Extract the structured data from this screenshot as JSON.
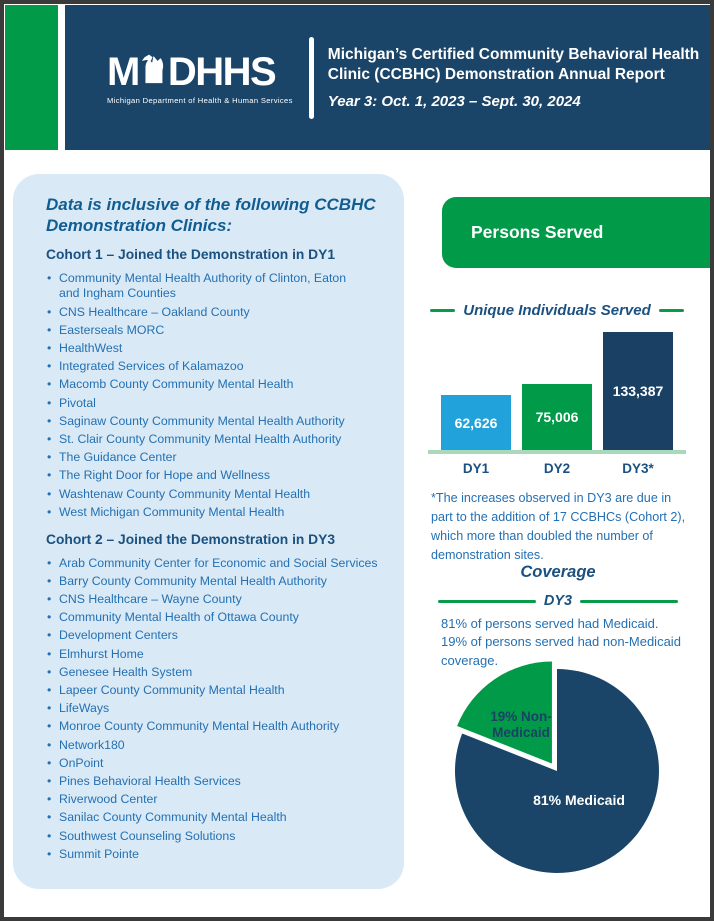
{
  "header": {
    "logo": {
      "prefix": "M",
      "suffix": "DHHS",
      "tagline": "Michigan Department of Health & Human Services"
    },
    "title_line1": "Michigan’s Certified Community Behavioral Health",
    "title_line2": "Clinic (CCBHC) Demonstration Annual Report",
    "subtitle": "Year 3: Oct. 1, 2023 – Sept. 30, 2024"
  },
  "clinics_panel": {
    "heading": "Data is inclusive of the following CCBHC Demonstration Clinics:",
    "cohorts": [
      {
        "title": "Cohort 1 – Joined the Demonstration in DY1",
        "items": [
          "Community Mental Health Authority of Clinton, Eaton\nand Ingham Counties",
          "CNS Healthcare – Oakland County",
          "Easterseals MORC",
          "HealthWest",
          "Integrated Services of Kalamazoo",
          "Macomb County Community Mental Health",
          "Pivotal",
          "Saginaw County Community Mental Health Authority",
          "St. Clair County Community Mental Health Authority",
          "The Guidance Center",
          "The Right Door for Hope and Wellness",
          "Washtenaw County Community Mental Health",
          "West Michigan Community Mental Health"
        ]
      },
      {
        "title": "Cohort 2 – Joined the Demonstration in DY3",
        "items": [
          "Arab Community Center for Economic and Social Services",
          "Barry County Community Mental Health Authority",
          "CNS Healthcare – Wayne County",
          "Community Mental Health of Ottawa County",
          "Development Centers",
          "Elmhurst Home",
          "Genesee Health System",
          "Lapeer County Community Mental Health",
          "LifeWays",
          "Monroe County Community Mental Health Authority",
          "Network180",
          "OnPoint",
          "Pines Behavioral Health Services",
          "Riverwood Center",
          "Sanilac County Community Mental Health",
          "Southwest Counseling Solutions",
          "Summit Pointe"
        ]
      }
    ]
  },
  "persons_served": {
    "banner": "Persons Served",
    "section_title": "Unique Individuals Served",
    "footnote": "*The increases observed in DY3 are due in part to the addition of 17 CCBHCs (Cohort 2), which more than doubled the number of demonstration sites."
  },
  "coverage": {
    "title": "Coverage",
    "subtitle": "DY3",
    "line1": "81% of persons served had Medicaid.",
    "line2": "19% of persons served had non-Medicaid coverage.",
    "pie_label_nonmedicaid_line1": "19% Non-",
    "pie_label_nonmedicaid_line2": "Medicaid",
    "pie_label_medicaid": "81% Medicaid"
  },
  "chart_data": [
    {
      "type": "bar",
      "title": "Unique Individuals Served",
      "categories": [
        "DY1",
        "DY2",
        "DY3*"
      ],
      "values": [
        62626,
        75006,
        133387
      ],
      "labels": [
        "62,626",
        "75,006",
        "133,387"
      ],
      "colors": [
        "#22a2da",
        "#009a48",
        "#1a4163"
      ],
      "baseline_color": "#a9d8bb",
      "value_label_position": "center",
      "grid": false,
      "legend": false
    },
    {
      "type": "pie",
      "title": "Coverage — DY3",
      "slices": [
        {
          "label": "81% Medicaid",
          "value": 81,
          "color": "#1a4569"
        },
        {
          "label": "19% Non-Medicaid",
          "value": 19,
          "color": "#009a48"
        }
      ],
      "start_angle": "top",
      "direction": "clockwise",
      "exploded_slice": "19% Non-Medicaid"
    }
  ],
  "colors": {
    "brand_navy": "#1a4569",
    "brand_green": "#009a48",
    "panel_blue": "#d9eaf6",
    "heading_blue": "#115d92",
    "cohort_navy": "#1b5180",
    "body_blue": "#2470b3",
    "bar_lightblue": "#22a2da",
    "baseline_green": "#a9d8bb"
  }
}
